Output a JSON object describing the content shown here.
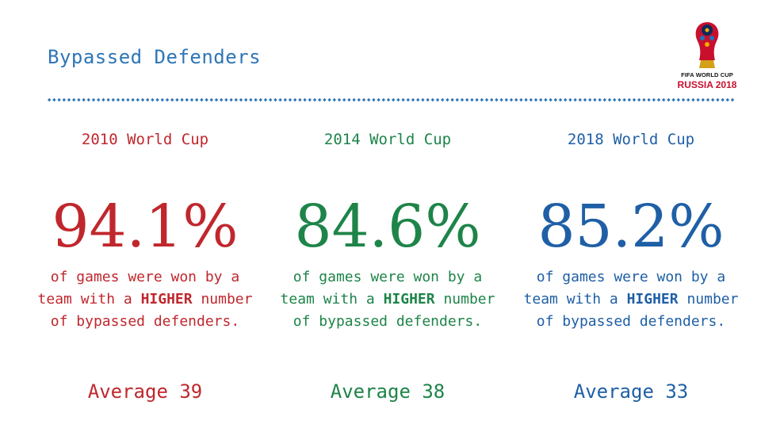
{
  "title": "Bypassed Defenders",
  "colors": {
    "title": "#2e75b6",
    "divider": "#2e75b6",
    "red": "#c0272d",
    "green": "#1e8449",
    "blue": "#1f5fa6"
  },
  "logo": {
    "icon": "fifa-world-cup-trophy-icon",
    "line1": "FIFA WORLD CUP",
    "line2": "RUSSIA 2018"
  },
  "columns": [
    {
      "heading": "2010 World Cup",
      "percent": "94.1%",
      "desc_prefix": "of games were won by a team with a",
      "desc_highlight": "HIGHER",
      "desc_suffix": "number of bypassed defenders.",
      "average": "Average 39"
    },
    {
      "heading": "2014 World Cup",
      "percent": "84.6%",
      "desc_prefix": "of games were won by a team with a",
      "desc_highlight": "HIGHER",
      "desc_suffix": "number of bypassed defenders.",
      "average": "Average 38"
    },
    {
      "heading": "2018 World Cup",
      "percent": "85.2%",
      "desc_prefix": "of games were won by a team with a",
      "desc_highlight": "HIGHER",
      "desc_suffix": "number of bypassed defenders.",
      "average": "Average 33"
    }
  ]
}
